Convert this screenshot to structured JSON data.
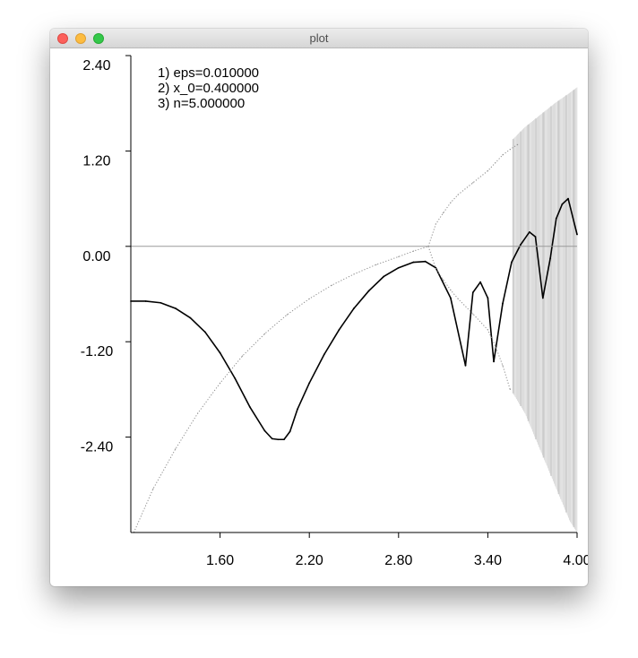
{
  "window": {
    "title": "plot"
  },
  "chart_data": {
    "type": "scatter",
    "title": "",
    "xlabel": "",
    "ylabel": "",
    "xlim": [
      1.0,
      4.0
    ],
    "ylim": [
      -3.6,
      2.4
    ],
    "x_ticks": [
      "1.60",
      "2.20",
      "2.80",
      "3.40",
      "4.00"
    ],
    "y_ticks": [
      "2.40",
      "1.20",
      "0.00",
      "-1.20",
      "-2.40"
    ],
    "legend": [
      "1) eps=0.010000",
      "2) x_0=0.400000",
      "3) n=5.000000"
    ],
    "legend_placement": "top-left",
    "grid": false,
    "reference_line_y": 0.0,
    "series": [
      {
        "style": "black-line",
        "x": [
          1.0,
          1.1,
          1.2,
          1.3,
          1.4,
          1.5,
          1.6,
          1.7,
          1.8,
          1.9,
          1.95,
          1.99,
          2.03,
          2.07,
          2.12,
          2.2,
          2.3,
          2.4,
          2.5,
          2.6,
          2.7,
          2.8,
          2.9,
          2.98,
          3.05,
          3.15,
          3.25,
          3.3,
          3.35,
          3.4,
          3.44,
          3.5,
          3.56,
          3.62,
          3.68,
          3.72,
          3.77,
          3.82,
          3.86,
          3.9,
          3.94,
          4.0
        ],
        "y": [
          -0.69,
          -0.69,
          -0.71,
          -0.78,
          -0.9,
          -1.08,
          -1.34,
          -1.66,
          -2.02,
          -2.32,
          -2.42,
          -2.43,
          -2.43,
          -2.33,
          -2.05,
          -1.72,
          -1.36,
          -1.05,
          -0.78,
          -0.56,
          -0.38,
          -0.27,
          -0.2,
          -0.19,
          -0.27,
          -0.65,
          -1.5,
          -0.58,
          -0.45,
          -0.65,
          -1.45,
          -0.72,
          -0.2,
          0.02,
          0.18,
          0.12,
          -0.65,
          -0.15,
          0.35,
          0.53,
          0.6,
          0.15
        ]
      },
      {
        "style": "gray-dots",
        "x": [
          1.02,
          1.15,
          1.3,
          1.45,
          1.6,
          1.75,
          1.9,
          2.05,
          2.2,
          2.35,
          2.5,
          2.65,
          2.8,
          2.9,
          3.0
        ],
        "y": [
          -3.6,
          -3.05,
          -2.55,
          -2.1,
          -1.72,
          -1.38,
          -1.1,
          -0.86,
          -0.66,
          -0.49,
          -0.35,
          -0.23,
          -0.13,
          -0.06,
          0.0
        ]
      },
      {
        "style": "gray-dots",
        "x": [
          3.0,
          3.05,
          3.1,
          3.15,
          3.2,
          3.3,
          3.4,
          3.45,
          3.5,
          3.55,
          3.6
        ],
        "y": [
          0.0,
          0.28,
          0.42,
          0.55,
          0.65,
          0.8,
          0.95,
          1.05,
          1.15,
          1.22,
          1.28
        ]
      },
      {
        "style": "gray-dots",
        "x": [
          3.0,
          3.05,
          3.1,
          3.15,
          3.2,
          3.3,
          3.4,
          3.45,
          3.5,
          3.55
        ],
        "y": [
          0.0,
          -0.28,
          -0.42,
          -0.55,
          -0.66,
          -0.85,
          -1.05,
          -1.25,
          -1.5,
          -1.8
        ]
      },
      {
        "style": "gray-band",
        "x": [
          3.57,
          3.65,
          3.75,
          3.85,
          3.95,
          4.0
        ],
        "y_upper": [
          1.35,
          1.5,
          1.65,
          1.8,
          1.93,
          2.0
        ],
        "y_lower": [
          -1.85,
          -2.1,
          -2.55,
          -3.0,
          -3.45,
          -3.6
        ]
      }
    ]
  }
}
